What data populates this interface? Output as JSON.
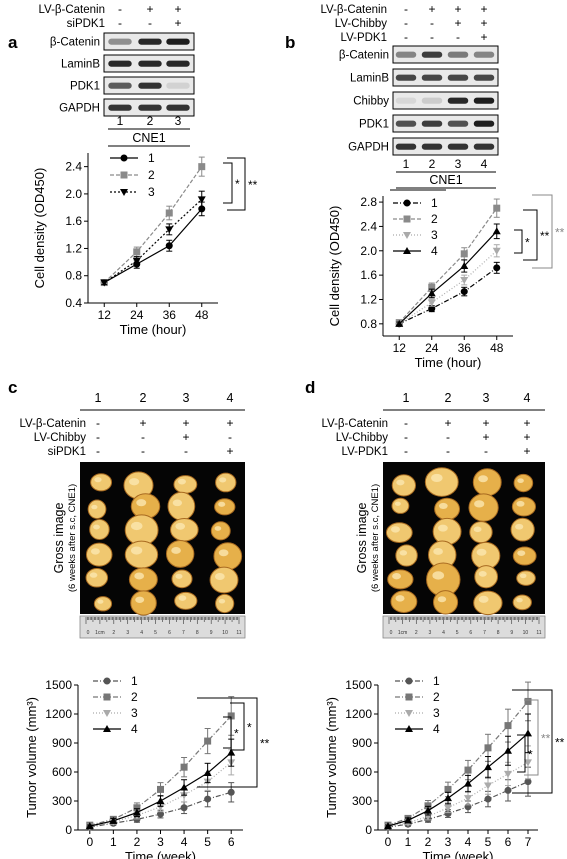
{
  "panels": {
    "a": {
      "letter": "a",
      "conditions": [
        {
          "name": "LV-β-Catenin",
          "marks": [
            "-",
            "+",
            "+"
          ]
        },
        {
          "name": "siPDK1",
          "marks": [
            "-",
            "-",
            "+"
          ]
        }
      ],
      "blot_labels": [
        "β-Catenin",
        "LaminB",
        "PDK1",
        "GAPDH"
      ],
      "lanes": [
        "1",
        "2",
        "3"
      ],
      "cell_line": "CNE1"
    },
    "b": {
      "letter": "b",
      "conditions": [
        {
          "name": "LV-β-Catenin",
          "marks": [
            "-",
            "+",
            "+",
            "+"
          ]
        },
        {
          "name": "LV-Chibby",
          "marks": [
            "-",
            "-",
            "+",
            "+"
          ]
        },
        {
          "name": "LV-PDK1",
          "marks": [
            "-",
            "-",
            "-",
            "+"
          ]
        }
      ],
      "blot_labels": [
        "β-Catenin",
        "LaminB",
        "Chibby",
        "PDK1",
        "GAPDH"
      ],
      "lanes": [
        "1",
        "2",
        "3",
        "4"
      ],
      "cell_line": "CNE1"
    },
    "c": {
      "letter": "c",
      "groups": [
        "1",
        "2",
        "3",
        "4"
      ],
      "conditions": [
        {
          "name": "LV-β-Catenin",
          "marks": [
            "-",
            "+",
            "+",
            "+"
          ]
        },
        {
          "name": "LV-Chibby",
          "marks": [
            "-",
            "-",
            "+",
            "-"
          ]
        },
        {
          "name": "siPDK1",
          "marks": [
            "-",
            "-",
            "-",
            "+"
          ]
        }
      ],
      "gross_label": "Gross image",
      "gross_sublabel": "(6 weeks after s.c, CNE1)",
      "ruler_ticks": [
        "0",
        "1cm",
        "2",
        "3",
        "4",
        "5",
        "6",
        "7",
        "8",
        "9",
        "10",
        "11"
      ]
    },
    "d": {
      "letter": "d",
      "groups": [
        "1",
        "2",
        "3",
        "4"
      ],
      "conditions": [
        {
          "name": "LV-β-Catenin",
          "marks": [
            "-",
            "+",
            "+",
            "+"
          ]
        },
        {
          "name": "LV-Chibby",
          "marks": [
            "-",
            "-",
            "+",
            "+"
          ]
        },
        {
          "name": "LV-PDK1",
          "marks": [
            "-",
            "-",
            "-",
            "+"
          ]
        }
      ],
      "gross_label": "Gross image",
      "gross_sublabel": "(6 weeks after s.c, CNE1)",
      "ruler_ticks": [
        "0",
        "1cm",
        "2",
        "3",
        "4",
        "5",
        "6",
        "7",
        "8",
        "9",
        "10",
        "11"
      ]
    }
  },
  "chart_data": [
    {
      "id": "a",
      "type": "line",
      "xlabel": "Time (hour)",
      "ylabel": "Cell density (OD450)",
      "x": [
        12,
        24,
        36,
        48
      ],
      "ylim": [
        0.4,
        2.6
      ],
      "yticks": [
        0.4,
        0.8,
        1.2,
        1.6,
        2.0,
        2.4
      ],
      "series": [
        {
          "name": "1",
          "values": [
            0.7,
            0.97,
            1.24,
            1.78
          ],
          "err": [
            0.03,
            0.06,
            0.08,
            0.1
          ],
          "color": "#000000",
          "dash": "",
          "marker": "circle"
        },
        {
          "name": "2",
          "values": [
            0.7,
            1.15,
            1.72,
            2.4
          ],
          "err": [
            0.03,
            0.07,
            0.1,
            0.14
          ],
          "color": "#8a8a8a",
          "dash": "4,2",
          "marker": "square"
        },
        {
          "name": "3",
          "values": [
            0.7,
            1.02,
            1.48,
            1.92
          ],
          "err": [
            0.03,
            0.06,
            0.08,
            0.12
          ],
          "color": "#000000",
          "dash": "2,2",
          "marker": "tri-down"
        }
      ],
      "significance": [
        "*",
        "**"
      ]
    },
    {
      "id": "b",
      "type": "line",
      "xlabel": "Time (hour)",
      "ylabel": "Cell density (OD450)",
      "x": [
        12,
        24,
        36,
        48
      ],
      "ylim": [
        0.6,
        2.9
      ],
      "yticks": [
        0.8,
        1.2,
        1.6,
        2.0,
        2.4,
        2.8
      ],
      "series": [
        {
          "name": "1",
          "values": [
            0.8,
            1.05,
            1.33,
            1.72
          ],
          "err": [
            0.03,
            0.05,
            0.07,
            0.09
          ],
          "color": "#000000",
          "dash": "5,2,1,2",
          "marker": "circle"
        },
        {
          "name": "2",
          "values": [
            0.82,
            1.4,
            1.95,
            2.7
          ],
          "err": [
            0.03,
            0.07,
            0.1,
            0.15
          ],
          "color": "#8a8a8a",
          "dash": "4,2",
          "marker": "square"
        },
        {
          "name": "3",
          "values": [
            0.8,
            1.15,
            1.52,
            2.0
          ],
          "err": [
            0.03,
            0.06,
            0.08,
            0.1
          ],
          "color": "#aaaaaa",
          "dash": "1,2",
          "marker": "tri-down"
        },
        {
          "name": "4",
          "values": [
            0.8,
            1.3,
            1.75,
            2.32
          ],
          "err": [
            0.03,
            0.07,
            0.1,
            0.12
          ],
          "color": "#000000",
          "dash": "",
          "marker": "tri-up"
        }
      ],
      "significance": [
        "*",
        "**",
        "**"
      ]
    },
    {
      "id": "c",
      "type": "line",
      "xlabel": "Time (week)",
      "ylabel": "Tumor volume (mm³)",
      "x": [
        0,
        1,
        2,
        3,
        4,
        5,
        6
      ],
      "ylim": [
        0,
        1500
      ],
      "yticks": [
        0,
        300,
        600,
        900,
        1200,
        1500
      ],
      "series": [
        {
          "name": "1",
          "values": [
            30,
            70,
            110,
            165,
            230,
            320,
            390
          ],
          "err": [
            10,
            20,
            30,
            40,
            60,
            80,
            100
          ],
          "color": "#555555",
          "dash": "5,2,1,2",
          "marker": "circle"
        },
        {
          "name": "2",
          "values": [
            50,
            110,
            230,
            420,
            650,
            920,
            1180
          ],
          "err": [
            15,
            30,
            50,
            70,
            100,
            130,
            200
          ],
          "color": "#777777",
          "dash": "5,2,1,2",
          "marker": "square"
        },
        {
          "name": "3",
          "values": [
            35,
            85,
            150,
            240,
            360,
            500,
            700
          ],
          "err": [
            10,
            25,
            35,
            50,
            70,
            90,
            130
          ],
          "color": "#aaaaaa",
          "dash": "1,2",
          "marker": "tri-down"
        },
        {
          "name": "4",
          "values": [
            40,
            95,
            180,
            300,
            440,
            590,
            800
          ],
          "err": [
            12,
            25,
            40,
            55,
            80,
            100,
            140
          ],
          "color": "#000000",
          "dash": "",
          "marker": "tri-up"
        }
      ],
      "significance": [
        "*",
        "*",
        "**"
      ]
    },
    {
      "id": "d",
      "type": "line",
      "xlabel": "Time (week)",
      "ylabel": "Tumor volume (mm³)",
      "x": [
        0,
        1,
        2,
        3,
        4,
        5,
        6,
        7
      ],
      "ylim": [
        0,
        1500
      ],
      "yticks": [
        0,
        300,
        600,
        900,
        1200,
        1500
      ],
      "series": [
        {
          "name": "1",
          "values": [
            30,
            60,
            110,
            170,
            240,
            320,
            410,
            500
          ],
          "err": [
            10,
            20,
            30,
            40,
            60,
            80,
            110,
            150
          ],
          "color": "#555555",
          "dash": "5,2,1,2",
          "marker": "circle"
        },
        {
          "name": "2",
          "values": [
            50,
            120,
            250,
            420,
            620,
            850,
            1080,
            1330
          ],
          "err": [
            15,
            30,
            55,
            75,
            100,
            140,
            170,
            200
          ],
          "color": "#777777",
          "dash": "5,2,1,2",
          "marker": "square"
        },
        {
          "name": "3",
          "values": [
            35,
            75,
            140,
            230,
            330,
            460,
            580,
            700
          ],
          "err": [
            10,
            20,
            35,
            50,
            70,
            90,
            120,
            170
          ],
          "color": "#aaaaaa",
          "dash": "1,2",
          "marker": "tri-down"
        },
        {
          "name": "4",
          "values": [
            40,
            100,
            200,
            330,
            480,
            650,
            820,
            1000
          ],
          "err": [
            12,
            25,
            45,
            60,
            85,
            110,
            150,
            200
          ],
          "color": "#000000",
          "dash": "",
          "marker": "tri-up"
        }
      ],
      "significance": [
        "*",
        "**",
        "**"
      ]
    }
  ]
}
